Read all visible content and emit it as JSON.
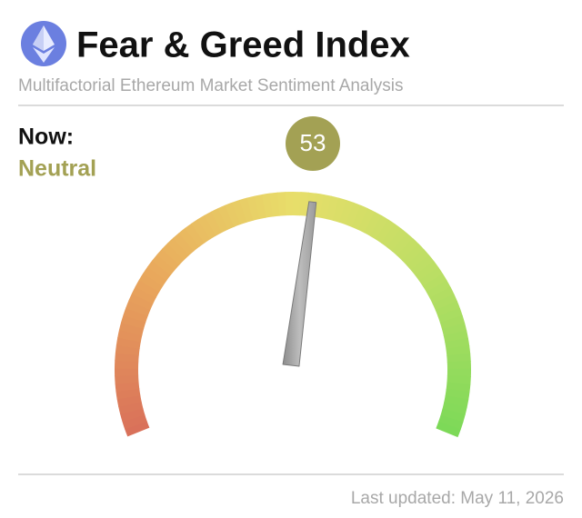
{
  "chart_data": {
    "type": "gauge",
    "title": "Fear & Greed Index",
    "subtitle": "Multifactorial Ethereum Market Sentiment Analysis",
    "now_label": "Now:",
    "status": "Neutral",
    "value": 53,
    "ylim": [
      0,
      100
    ],
    "color": "#a3a154",
    "footer": "Last updated: May 11, 2026"
  }
}
